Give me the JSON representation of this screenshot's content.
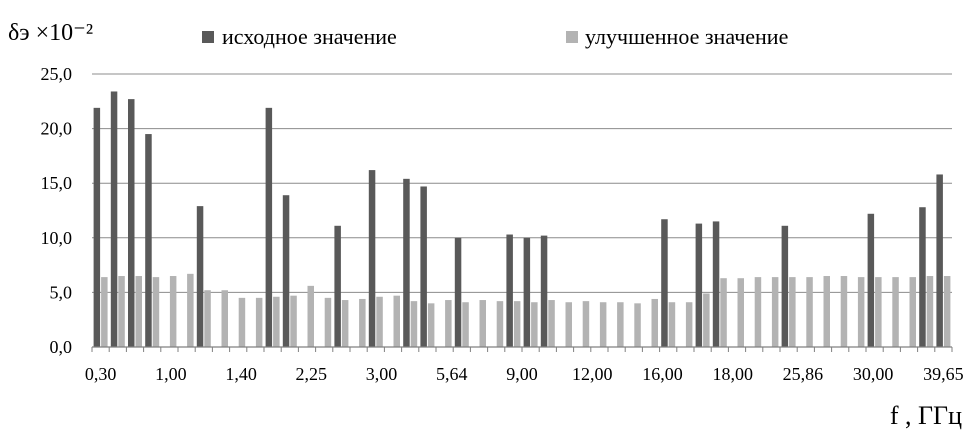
{
  "chart_data": {
    "type": "bar",
    "ylabel": "δэ ×10⁻²",
    "xlabel": "f , ГГц",
    "ylim": [
      0,
      25
    ],
    "yticks": [
      "0,0",
      "5,0",
      "10,0",
      "15,0",
      "20,0",
      "25,0"
    ],
    "xtick_labels": [
      "0,30",
      "1,00",
      "1,40",
      "2,25",
      "3,00",
      "5,64",
      "9,00",
      "12,00",
      "16,00",
      "18,00",
      "25,86",
      "30,00",
      "39,65"
    ],
    "legend_position": "top",
    "grid": true,
    "series": [
      {
        "name": "исходное значение",
        "color": "#595959",
        "values": [
          21.9,
          23.4,
          22.7,
          19.5,
          null,
          null,
          12.9,
          null,
          null,
          null,
          21.9,
          13.9,
          null,
          null,
          11.1,
          null,
          16.2,
          null,
          15.4,
          14.7,
          null,
          10.0,
          null,
          null,
          10.3,
          10.0,
          10.2,
          null,
          null,
          null,
          null,
          null,
          null,
          11.7,
          null,
          11.3,
          11.5,
          null,
          null,
          null,
          11.1,
          null,
          null,
          null,
          null,
          12.2,
          null,
          null,
          12.8,
          15.8
        ]
      },
      {
        "name": "улучшенное значение",
        "color": "#b3b3b3",
        "values": [
          6.4,
          6.5,
          6.5,
          6.4,
          6.5,
          6.7,
          5.2,
          5.2,
          4.5,
          4.5,
          4.6,
          4.7,
          5.6,
          4.5,
          4.3,
          4.4,
          4.6,
          4.7,
          4.2,
          4.0,
          4.3,
          4.1,
          4.3,
          4.2,
          4.2,
          4.1,
          4.3,
          4.1,
          4.2,
          4.1,
          4.1,
          4.0,
          4.4,
          4.1,
          4.1,
          4.9,
          6.3,
          6.3,
          6.4,
          6.4,
          6.4,
          6.4,
          6.5,
          6.5,
          6.4,
          6.4,
          6.4,
          6.4,
          6.5,
          6.5
        ]
      }
    ]
  }
}
